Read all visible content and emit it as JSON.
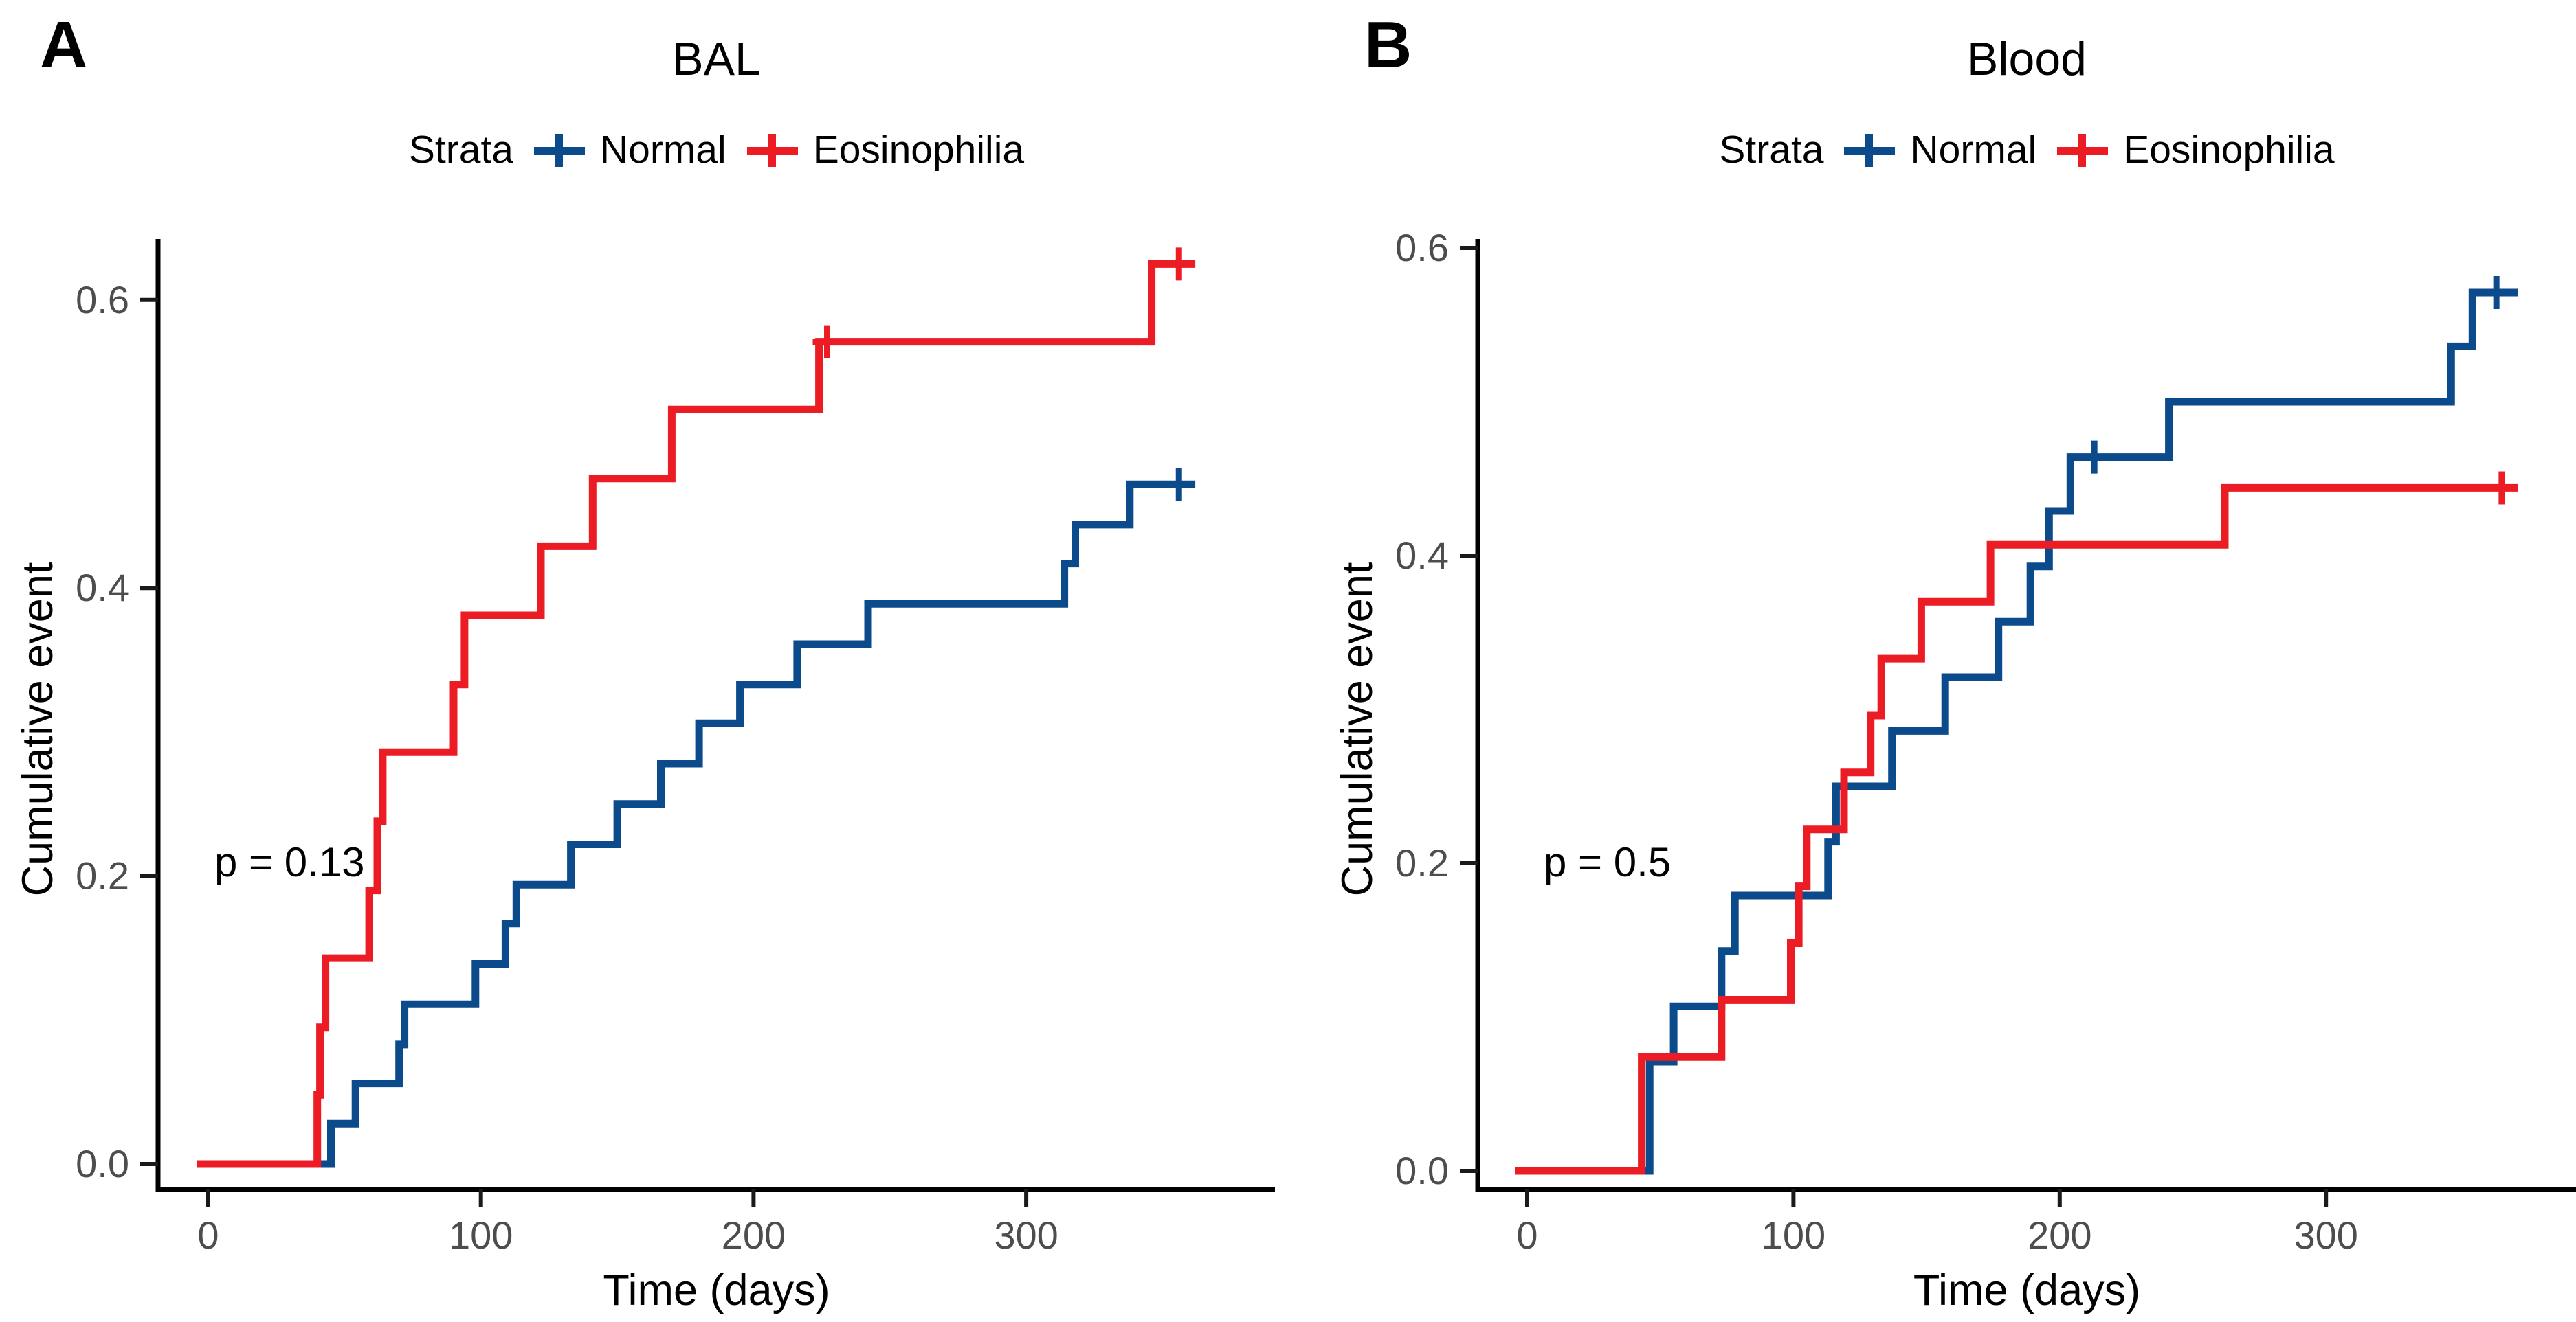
{
  "figure": {
    "panels": [
      {
        "panel_label": "A",
        "title": "BAL",
        "p_value_text": "p = 0.13",
        "legend": {
          "title": "Strata",
          "items": [
            {
              "label": "Normal",
              "color": "#0B4A8B"
            },
            {
              "label": "Eosinophilia",
              "color": "#EC1C24"
            }
          ]
        },
        "x_axis": {
          "label": "Time (days)",
          "ticks": [
            0,
            100,
            200,
            300
          ]
        },
        "y_axis": {
          "label": "Cumulative event",
          "ticks": [
            0.0,
            0.2,
            0.4,
            0.6
          ]
        }
      },
      {
        "panel_label": "B",
        "title": "Blood",
        "p_value_text": "p = 0.5",
        "legend": {
          "title": "Strata",
          "items": [
            {
              "label": "Normal",
              "color": "#0B4A8B"
            },
            {
              "label": "Eosinophilia",
              "color": "#EC1C24"
            }
          ]
        },
        "x_axis": {
          "label": "Time (days)",
          "ticks": [
            0,
            100,
            200,
            300
          ]
        },
        "y_axis": {
          "label": "Cumulative event",
          "ticks": [
            0.0,
            0.2,
            0.4,
            0.6
          ]
        }
      }
    ]
  },
  "chart_data": [
    {
      "type": "line",
      "subtype": "step-cumulative-incidence",
      "title": "BAL",
      "xlabel": "Time (days)",
      "ylabel": "Cumulative event",
      "xlim": [
        0,
        390
      ],
      "ylim": [
        0,
        0.65
      ],
      "x_ticks": [
        0,
        100,
        200,
        300
      ],
      "y_ticks": [
        0.0,
        0.2,
        0.4,
        0.6
      ],
      "grid": false,
      "legend_position": "top",
      "p_value": 0.13,
      "line_end_day": 362,
      "series": [
        {
          "name": "Normal",
          "color": "#0B4A8B",
          "points": [
            [
              45,
              0.028
            ],
            [
              54,
              0.056
            ],
            [
              70,
              0.083
            ],
            [
              72,
              0.111
            ],
            [
              98,
              0.139
            ],
            [
              109,
              0.167
            ],
            [
              113,
              0.194
            ],
            [
              133,
              0.222
            ],
            [
              150,
              0.25
            ],
            [
              166,
              0.278
            ],
            [
              180,
              0.306
            ],
            [
              195,
              0.333
            ],
            [
              216,
              0.361
            ],
            [
              242,
              0.389
            ],
            [
              314,
              0.417
            ],
            [
              318,
              0.444
            ],
            [
              338,
              0.472
            ]
          ],
          "censor_marks": [
            [
              356,
              0.472
            ]
          ]
        },
        {
          "name": "Eosinophilia",
          "color": "#EC1C24",
          "points": [
            [
              40,
              0.048
            ],
            [
              41,
              0.095
            ],
            [
              43,
              0.143
            ],
            [
              59,
              0.19
            ],
            [
              62,
              0.238
            ],
            [
              64,
              0.286
            ],
            [
              90,
              0.333
            ],
            [
              94,
              0.381
            ],
            [
              122,
              0.429
            ],
            [
              141,
              0.476
            ],
            [
              170,
              0.524
            ],
            [
              224,
              0.571
            ],
            [
              346,
              0.625
            ]
          ],
          "censor_marks": [
            [
              227,
              0.571
            ],
            [
              356,
              0.625
            ]
          ]
        }
      ]
    },
    {
      "type": "line",
      "subtype": "step-cumulative-incidence",
      "title": "Blood",
      "xlabel": "Time (days)",
      "ylabel": "Cumulative event",
      "xlim": [
        0,
        395
      ],
      "ylim": [
        0,
        0.65
      ],
      "x_ticks": [
        0,
        100,
        200,
        300
      ],
      "y_ticks": [
        0.0,
        0.2,
        0.4,
        0.6
      ],
      "grid": false,
      "legend_position": "top",
      "p_value": 0.5,
      "line_end_day": 372,
      "series": [
        {
          "name": "Normal",
          "color": "#0B4A8B",
          "points": [
            [
              46,
              0.071
            ],
            [
              55,
              0.107
            ],
            [
              73,
              0.143
            ],
            [
              78,
              0.179
            ],
            [
              113,
              0.214
            ],
            [
              116,
              0.25
            ],
            [
              137,
              0.286
            ],
            [
              157,
              0.321
            ],
            [
              177,
              0.357
            ],
            [
              189,
              0.393
            ],
            [
              196,
              0.429
            ],
            [
              204,
              0.464
            ],
            [
              241,
              0.5
            ],
            [
              347,
              0.536
            ],
            [
              355,
              0.571
            ]
          ],
          "censor_marks": [
            [
              213,
              0.464
            ],
            [
              364,
              0.571
            ]
          ]
        },
        {
          "name": "Eosinophilia",
          "color": "#EC1C24",
          "points": [
            [
              43,
              0.074
            ],
            [
              73,
              0.111
            ],
            [
              99,
              0.148
            ],
            [
              102,
              0.185
            ],
            [
              105,
              0.222
            ],
            [
              119,
              0.259
            ],
            [
              129,
              0.296
            ],
            [
              133,
              0.333
            ],
            [
              148,
              0.37
            ],
            [
              174,
              0.407
            ],
            [
              262,
              0.444
            ]
          ],
          "censor_marks": [
            [
              366,
              0.444
            ]
          ]
        }
      ]
    }
  ]
}
